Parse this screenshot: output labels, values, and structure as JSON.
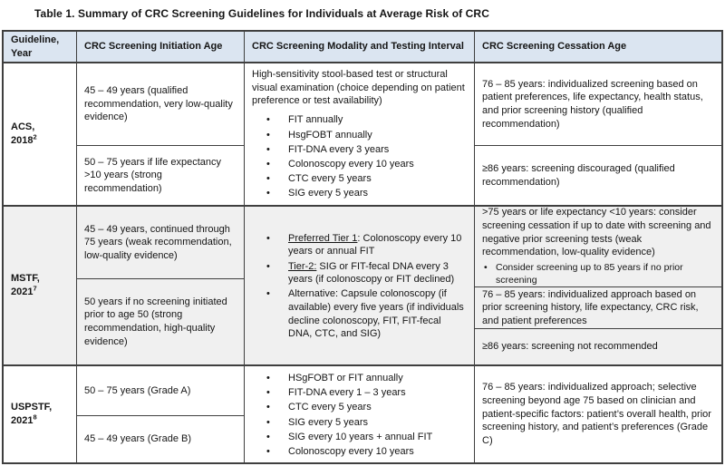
{
  "page": {
    "title": "Table 1. Summary of CRC Screening Guidelines for Individuals at Average Risk of CRC"
  },
  "colors": {
    "header_bg": "#dbe5f1",
    "mstf_row_bg": "#f0f0f0",
    "border": "#3f3f3f"
  },
  "table": {
    "headers": [
      "Guideline, Year",
      "CRC Screening Initiation Age",
      "CRC Screening Modality and Testing Interval",
      "CRC Screening Cessation Age"
    ],
    "rows": [
      {
        "guideline": "ACS,",
        "year": "2018",
        "ref": "2",
        "initiation": [
          "45 – 49 years (qualified recommendation, very low-quality evidence)",
          "50 – 75 years if life expectancy >10 years (strong recommendation)"
        ],
        "modality_intro": "High-sensitivity stool-based test or structural visual examination (choice depending on patient preference or test availability)",
        "modality_bullets": [
          "FIT annually",
          "HsgFOBT annually",
          "FIT-DNA every 3 years",
          "Colonoscopy every 10 years",
          "CTC every 5 years",
          "SIG every 5 years"
        ],
        "cessation": [
          "76 – 85 years: individualized screening based on patient preferences, life expectancy, health status, and prior screening history (qualified recommendation)",
          "≥86 years: screening discouraged (qualified recommendation)"
        ]
      },
      {
        "guideline": "MSTF,",
        "year": "2021",
        "ref": "7",
        "initiation": [
          "45 – 49 years, continued through 75 years (weak recommendation, low-quality evidence)",
          "50 years if no screening initiated prior to age 50 (strong recommendation, high-quality evidence)"
        ],
        "modality_bullets": [
          {
            "lead": "Preferred Tier 1",
            "rest": ": Colonoscopy every 10 years or annual FIT"
          },
          {
            "lead": "Tier-2:",
            "rest": " SIG or FIT-fecal DNA every 3 years (if colonoscopy or FIT declined)"
          },
          {
            "lead": "",
            "rest": "Alternative: Capsule colonoscopy (if available) every five years (if individuals decline colonoscopy, FIT, FIT-fecal DNA, CTC, and SIG)"
          }
        ],
        "cessation_1": ">75 years or life expectancy <10 years: consider screening cessation if up to date with screening and negative prior screening tests (weak recommendation, low-quality evidence)",
        "cessation_1_bullet": "Consider screening up to 85 years if no prior screening",
        "cessation_2": "76 – 85 years: individualized approach based on prior screening history, life expectancy, CRC risk, and patient preferences",
        "cessation_3": "≥86 years: screening not recommended"
      },
      {
        "guideline": "USPSTF,",
        "year": "2021",
        "ref": "8",
        "initiation": [
          "50 – 75 years (Grade A)",
          "45 – 49 years (Grade B)"
        ],
        "modality_bullets": [
          "HSgFOBT or FIT annually",
          "FIT-DNA every 1 – 3 years",
          "CTC every 5 years",
          "SIG every 5 years",
          "SIG every 10 years + annual FIT",
          "Colonoscopy every 10 years"
        ],
        "cessation": [
          "76 – 85 years: individualized approach; selective screening beyond age 75 based on clinician and patient-specific factors: patient’s overall health, prior screening history, and patient’s preferences (Grade C)"
        ]
      }
    ]
  }
}
